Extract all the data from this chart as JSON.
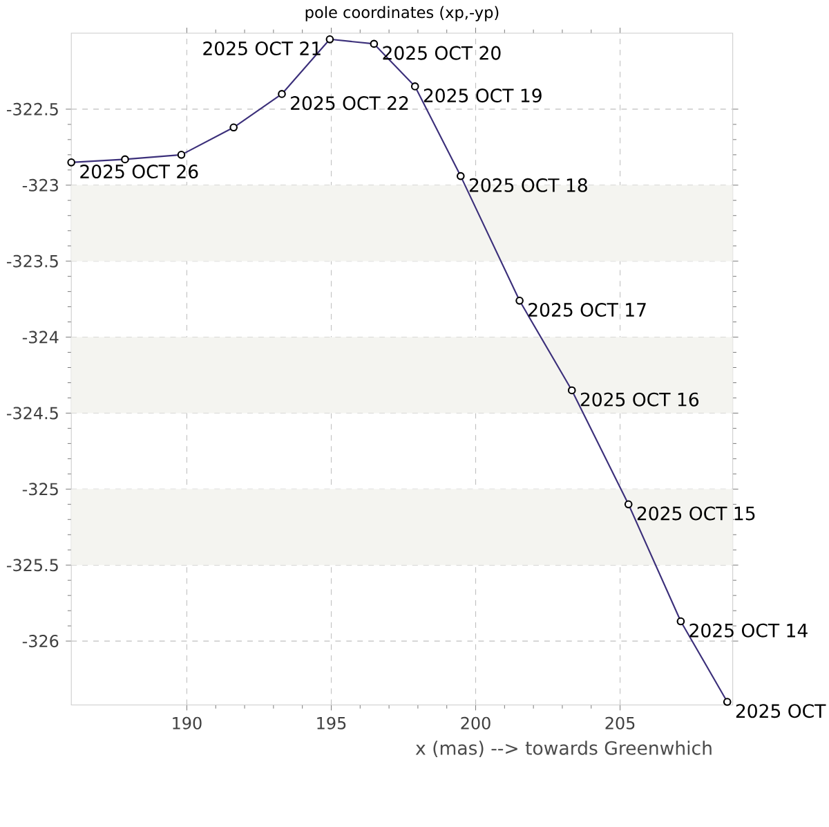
{
  "chart_data": {
    "type": "line",
    "title": "pole coordinates (xp,-yp)",
    "xlabel": "x (mas) --> towards Greenwhich",
    "x": [
      186.0,
      187.86,
      189.81,
      191.62,
      193.29,
      194.95,
      196.48,
      197.9,
      199.48,
      201.52,
      203.33,
      205.29,
      207.1,
      208.71
    ],
    "series": [
      {
        "color": "#3b2f7a",
        "values": [
          -322.85,
          -322.83,
          -322.8,
          -322.62,
          -322.4,
          -322.04,
          -322.07,
          -322.35,
          -322.94,
          -323.76,
          -324.35,
          -325.1,
          -325.87,
          -326.4
        ]
      }
    ],
    "xlim": [
      186.0,
      208.9
    ],
    "ylim": [
      -326.42,
      -322.0
    ],
    "xticks": [
      190,
      195,
      200,
      205
    ],
    "yticks": [
      -326,
      -325.5,
      -325,
      -324.5,
      -324,
      -323.5,
      -323,
      -322.5
    ],
    "grid": true,
    "marker": "circle",
    "line_style": "solid",
    "bands": [
      {
        "axis": "y",
        "from": -323.5,
        "to": -323,
        "color": "#f4f4f0"
      },
      {
        "axis": "y",
        "from": -324.5,
        "to": -324,
        "color": "#f4f4f0"
      },
      {
        "axis": "y",
        "from": -325.5,
        "to": -325,
        "color": "#f4f4f0"
      }
    ],
    "annotations": [
      {
        "text": "2025 OCT 26",
        "x": 186.0,
        "y": -322.85
      },
      {
        "text": "2025 OCT 22",
        "x": 193.29,
        "y": -322.4
      },
      {
        "text": "2025 OCT 21",
        "x": 194.95,
        "y": -322.04
      },
      {
        "text": "2025 OCT 20",
        "x": 196.48,
        "y": -322.07
      },
      {
        "text": "2025 OCT 19",
        "x": 197.9,
        "y": -322.35
      },
      {
        "text": "2025 OCT 18",
        "x": 199.48,
        "y": -322.94
      },
      {
        "text": "2025 OCT 17",
        "x": 201.52,
        "y": -323.76
      },
      {
        "text": "2025 OCT 16",
        "x": 203.33,
        "y": -324.35
      },
      {
        "text": "2025 OCT 15",
        "x": 205.29,
        "y": -325.1
      },
      {
        "text": "2025 OCT 14",
        "x": 207.1,
        "y": -325.87
      },
      {
        "text": "2025 OCT",
        "x": 208.71,
        "y": -326.4
      }
    ]
  }
}
